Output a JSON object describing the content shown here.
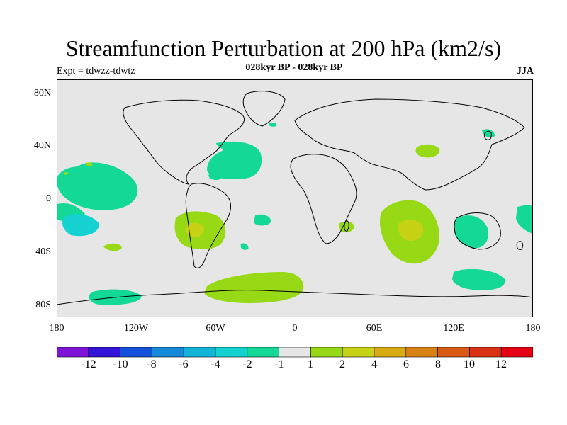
{
  "header": {
    "title": "Streamfunction Perturbation at 200 hPa (km2/s)",
    "subtitle": "028kyr BP - 028kyr BP",
    "left_label": "Expt = tdwzz-tdwtz",
    "right_label": "JJA"
  },
  "axes": {
    "lat_labels": [
      "80N",
      "40N",
      "0",
      "40S",
      "80S"
    ],
    "lon_labels": [
      "180",
      "120W",
      "60W",
      "0",
      "60E",
      "120E",
      "180"
    ]
  },
  "colorbar": {
    "labels": [
      "-12",
      "-10",
      "-8",
      "-6",
      "-4",
      "-2",
      "-1",
      "1",
      "2",
      "4",
      "6",
      "8",
      "10",
      "12"
    ],
    "colors": [
      "#7f14d9",
      "#3314d9",
      "#1450d9",
      "#148ad9",
      "#14b4d9",
      "#14d2d2",
      "#14d996",
      "#e6e6e6",
      "#96d914",
      "#c8d214",
      "#d9aa14",
      "#d98214",
      "#d95a14",
      "#d93214",
      "#e60014"
    ]
  },
  "map_style": {
    "background": "#e6e6e6",
    "coastline_color": "#000000"
  }
}
